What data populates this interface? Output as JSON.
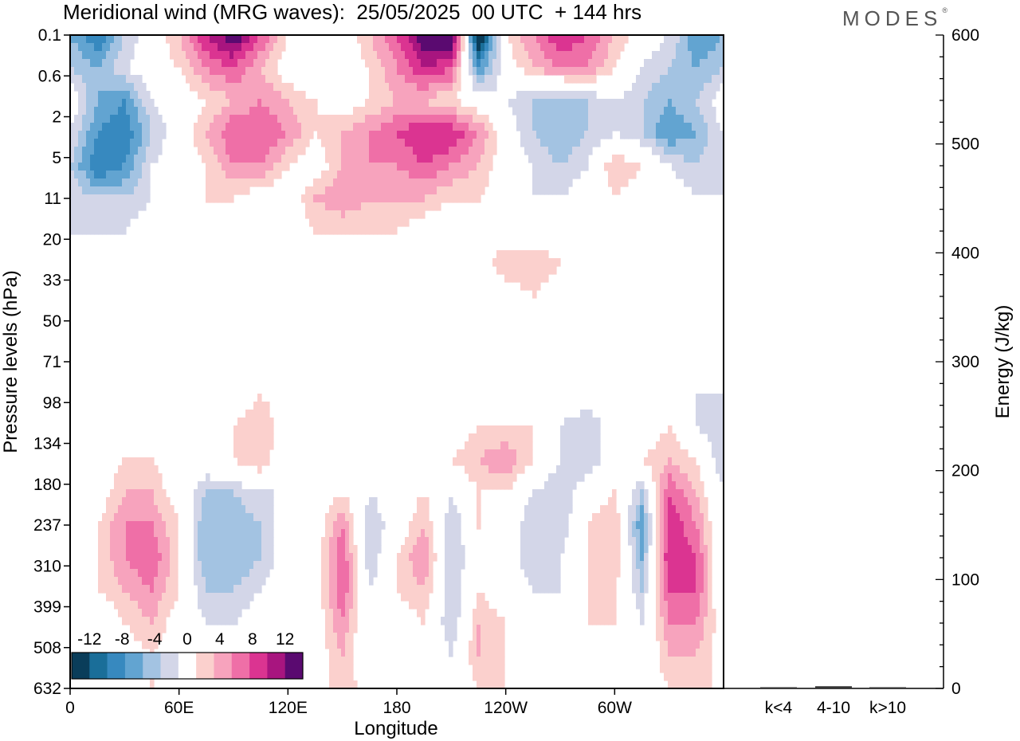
{
  "header": {
    "title": "Meridional wind (MRG waves):  25/05/2025  00 UTC  + 144 hrs",
    "logo": "MODES",
    "logo_mark": "®"
  },
  "chart_data": [
    {
      "type": "heatmap",
      "title": "Meridional wind (MRG waves):  25/05/2025  00 UTC  + 144 hrs",
      "xlabel": "Longitude",
      "ylabel": "Pressure levels (hPa)",
      "x_ticks": [
        "0",
        "60E",
        "120E",
        "180",
        "120W",
        "60W"
      ],
      "x_tick_lon": [
        0,
        60,
        120,
        180,
        240,
        300
      ],
      "xlim": [
        0,
        360
      ],
      "y_ticks": [
        "0.1",
        "0.6",
        "2",
        "5",
        "11",
        "20",
        "33",
        "50",
        "71",
        "98",
        "134",
        "180",
        "237",
        "310",
        "399",
        "508",
        "632"
      ],
      "y_axis": "pressure levels, evenly spaced index, top 0.1 hPa to bottom 632 hPa",
      "colorbar": {
        "labels": [
          "-12",
          "-8",
          "-4",
          "0",
          "4",
          "8",
          "12"
        ],
        "levels": [
          -14,
          -12,
          -10,
          -8,
          -6,
          -4,
          -2,
          2,
          4,
          6,
          8,
          10,
          12,
          14
        ],
        "colors": [
          "#0a3d5a",
          "#1a6e99",
          "#3789bf",
          "#62a4d1",
          "#a3c3e2",
          "#d3d6e8",
          "#ffffff",
          "#fbd0cd",
          "#f7a3bd",
          "#ef6fa7",
          "#db3491",
          "#a8157f",
          "#5a0a70"
        ]
      },
      "cells_note": "field sampled on a longitude x level grid, values in m/s",
      "grid_lon": [
        0,
        15,
        30,
        45,
        60,
        75,
        90,
        105,
        120,
        135,
        150,
        165,
        180,
        195,
        210,
        225,
        240,
        255,
        270,
        285,
        300,
        315,
        330,
        345,
        360
      ],
      "grid_levels": [
        "0.1",
        "0.3",
        "0.6",
        "1",
        "2",
        "3",
        "5",
        "8",
        "11",
        "20",
        "33",
        "50",
        "71",
        "98",
        "134",
        "180",
        "237",
        "310",
        "399",
        "508",
        "632"
      ],
      "values": [
        [
          -6,
          -10,
          -4,
          0,
          4,
          10,
          14,
          8,
          2,
          -2,
          0,
          4,
          8,
          14,
          16,
          -16,
          2,
          6,
          10,
          8,
          4,
          0,
          -2,
          -8,
          -6
        ],
        [
          -4,
          -6,
          -2,
          0,
          2,
          6,
          8,
          4,
          0,
          -2,
          0,
          2,
          6,
          10,
          8,
          -8,
          0,
          4,
          6,
          6,
          2,
          -2,
          -4,
          -6,
          -4
        ],
        [
          0,
          -6,
          -8,
          -2,
          0,
          2,
          4,
          6,
          4,
          2,
          0,
          2,
          4,
          4,
          2,
          0,
          -2,
          -4,
          -6,
          -4,
          -2,
          -4,
          -6,
          -4,
          0
        ],
        [
          -2,
          -8,
          -10,
          -4,
          0,
          4,
          8,
          8,
          6,
          2,
          4,
          6,
          8,
          10,
          10,
          6,
          0,
          -4,
          -6,
          -4,
          -2,
          -4,
          -8,
          -6,
          -2
        ],
        [
          -4,
          -10,
          -8,
          -2,
          0,
          2,
          6,
          6,
          2,
          0,
          4,
          6,
          6,
          8,
          6,
          4,
          0,
          -2,
          -4,
          -2,
          4,
          2,
          -2,
          -4,
          -2
        ],
        [
          -2,
          -4,
          -4,
          -2,
          0,
          2,
          2,
          0,
          0,
          4,
          6,
          4,
          4,
          4,
          2,
          2,
          0,
          -2,
          -2,
          0,
          2,
          0,
          0,
          -2,
          -2
        ],
        [
          -2,
          -2,
          -2,
          0,
          0,
          0,
          0,
          0,
          0,
          2,
          2,
          2,
          2,
          0,
          0,
          0,
          0,
          0,
          0,
          -2,
          -2,
          -2,
          -2,
          -2,
          -2
        ],
        [
          0,
          0,
          -2,
          0,
          0,
          0,
          0,
          0,
          0,
          0,
          0,
          0,
          0,
          0,
          0,
          0,
          4,
          4,
          2,
          0,
          -2,
          -2,
          -2,
          -2,
          0
        ],
        [
          0,
          0,
          0,
          0,
          0,
          0,
          0,
          0,
          -2,
          0,
          0,
          0,
          0,
          0,
          0,
          0,
          0,
          2,
          0,
          0,
          0,
          -2,
          -2,
          0,
          0
        ],
        [
          0,
          0,
          0,
          0,
          0,
          0,
          0,
          0,
          0,
          0,
          0,
          0,
          0,
          0,
          0,
          0,
          0,
          0,
          0,
          0,
          0,
          0,
          0,
          0,
          0
        ],
        [
          0,
          0,
          0,
          0,
          0,
          0,
          0,
          0,
          0,
          0,
          0,
          0,
          0,
          0,
          0,
          0,
          0,
          0,
          0,
          0,
          0,
          0,
          0,
          0,
          0
        ],
        [
          -2,
          0,
          0,
          0,
          0,
          0,
          0,
          2,
          0,
          0,
          0,
          0,
          0,
          0,
          0,
          0,
          0,
          2,
          0,
          0,
          0,
          0,
          0,
          -2,
          -2
        ],
        [
          2,
          0,
          0,
          0,
          0,
          0,
          2,
          4,
          0,
          -2,
          0,
          0,
          0,
          0,
          0,
          2,
          2,
          2,
          -2,
          -4,
          0,
          0,
          2,
          -2,
          -4
        ],
        [
          0,
          0,
          2,
          2,
          0,
          0,
          2,
          4,
          -2,
          -2,
          0,
          0,
          0,
          0,
          2,
          4,
          6,
          2,
          -2,
          -4,
          0,
          2,
          4,
          2,
          -4
        ],
        [
          -2,
          0,
          4,
          4,
          0,
          -4,
          -4,
          -2,
          -2,
          0,
          2,
          -2,
          0,
          2,
          -2,
          2,
          2,
          -2,
          -4,
          0,
          2,
          -4,
          8,
          4,
          -2
        ],
        [
          0,
          2,
          6,
          6,
          2,
          -6,
          -6,
          -4,
          0,
          0,
          6,
          -4,
          0,
          4,
          -4,
          2,
          0,
          -4,
          -4,
          2,
          4,
          -8,
          10,
          6,
          -2
        ],
        [
          0,
          2,
          6,
          8,
          2,
          -6,
          -6,
          -4,
          0,
          0,
          8,
          -4,
          2,
          6,
          -4,
          0,
          0,
          -4,
          -2,
          2,
          4,
          -6,
          10,
          8,
          -2
        ],
        [
          0,
          2,
          4,
          6,
          2,
          -4,
          -4,
          -2,
          0,
          0,
          8,
          -2,
          2,
          4,
          -4,
          2,
          0,
          -2,
          -2,
          2,
          2,
          -4,
          8,
          8,
          -2
        ],
        [
          0,
          -2,
          2,
          4,
          0,
          -2,
          -2,
          0,
          0,
          0,
          6,
          -2,
          0,
          2,
          -4,
          4,
          2,
          -2,
          -2,
          2,
          2,
          -2,
          6,
          6,
          0
        ],
        [
          0,
          -2,
          0,
          2,
          0,
          0,
          0,
          0,
          0,
          0,
          4,
          -2,
          0,
          2,
          -2,
          4,
          2,
          -2,
          0,
          2,
          0,
          -2,
          4,
          4,
          0
        ],
        [
          0,
          -2,
          0,
          2,
          0,
          0,
          0,
          0,
          0,
          0,
          4,
          0,
          0,
          0,
          -2,
          2,
          2,
          -2,
          0,
          0,
          0,
          0,
          2,
          4,
          0
        ]
      ]
    },
    {
      "type": "bar",
      "categories": [
        "k<4",
        "4-10",
        "k>10"
      ],
      "values": [
        1,
        2,
        1
      ],
      "ylabel": "Energy (J/kg)",
      "ylim": [
        0,
        600
      ],
      "y_ticks": [
        "0",
        "100",
        "200",
        "300",
        "400",
        "500",
        "600"
      ],
      "y_tick_values": [
        0,
        100,
        200,
        300,
        400,
        500,
        600
      ]
    }
  ]
}
